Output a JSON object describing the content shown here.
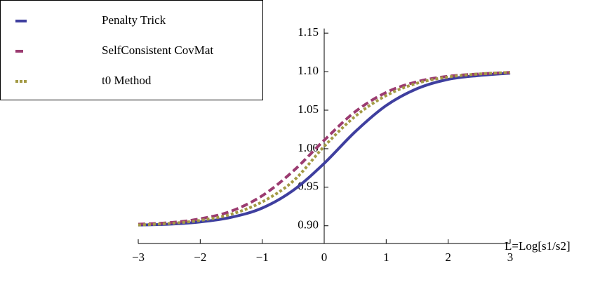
{
  "chart_data": {
    "type": "line",
    "x_label": "L=Log[s1/s2]",
    "x": [
      -3,
      -2.5,
      -2,
      -1.5,
      -1,
      -0.5,
      0,
      0.5,
      1,
      1.5,
      2,
      2.5,
      3
    ],
    "series": [
      {
        "name": "Penalty Trick",
        "color": "#3f3f9f",
        "dash": "none",
        "values": [
          0.901,
          0.902,
          0.905,
          0.911,
          0.923,
          0.946,
          0.981,
          1.022,
          1.056,
          1.078,
          1.09,
          1.095,
          1.098
        ]
      },
      {
        "name": "SelfConsistent CovMat",
        "color": "#9b3b70",
        "dash": "10 5",
        "values": [
          0.902,
          0.904,
          0.909,
          0.919,
          0.939,
          0.971,
          1.011,
          1.048,
          1.073,
          1.087,
          1.094,
          1.097,
          1.099
        ]
      },
      {
        "name": "t0 Method",
        "color": "#a39a45",
        "dash": "4 3",
        "values": [
          0.901,
          0.903,
          0.907,
          0.915,
          0.931,
          0.958,
          1.003,
          1.042,
          1.069,
          1.085,
          1.093,
          1.097,
          1.099
        ]
      }
    ],
    "xlim": [
      -3,
      3
    ],
    "ylim": [
      0.877,
      1.156
    ],
    "xticks": [
      {
        "value": -3,
        "label": "−3"
      },
      {
        "value": -2,
        "label": "−2"
      },
      {
        "value": -1,
        "label": "−1"
      },
      0,
      1,
      2,
      3
    ],
    "yticks": [
      {
        "value": 0.9,
        "label": "0.90"
      },
      {
        "value": 0.95,
        "label": "0.95"
      },
      {
        "value": 1.0,
        "label": "1.00"
      },
      {
        "value": 1.05,
        "label": "1.05"
      },
      {
        "value": 1.1,
        "label": "1.10"
      },
      {
        "value": 1.15,
        "label": "1.15"
      }
    ],
    "legend": "top-left"
  }
}
